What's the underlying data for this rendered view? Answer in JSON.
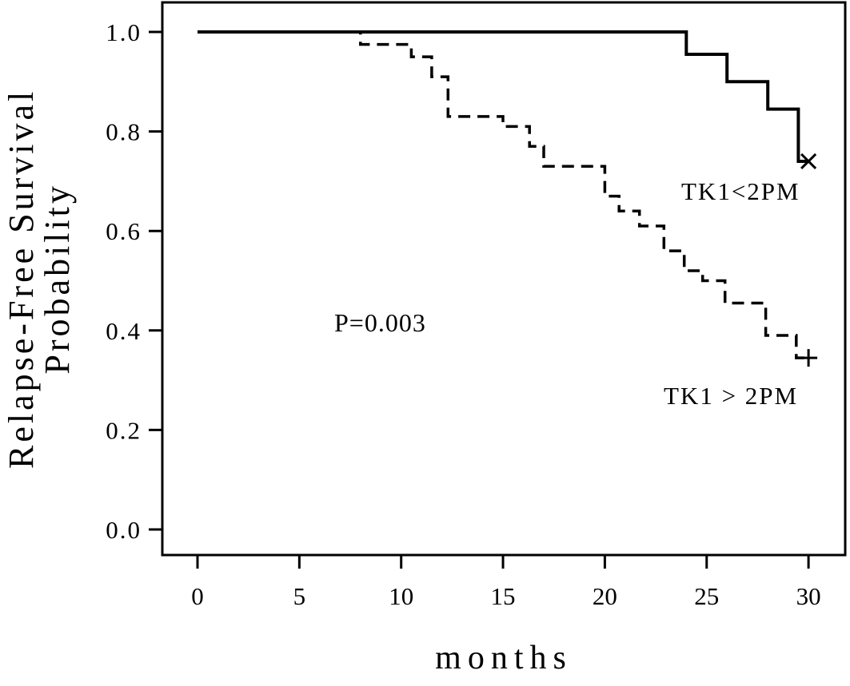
{
  "chart_data": {
    "type": "line",
    "subtype": "kaplan-meier-step-curves",
    "title": "",
    "xlabel": "months",
    "ylabel": "Relapse-Free Survival Probability",
    "ylabel_lines": [
      "Relapse-Free Survival",
      "Probability"
    ],
    "xlim": [
      0,
      30
    ],
    "ylim": [
      0.0,
      1.0
    ],
    "grid": false,
    "legend_position": "in-plot-annotations",
    "x_ticks": {
      "values": [
        0,
        5,
        10,
        15,
        20,
        25,
        30
      ],
      "labels": [
        "0",
        "5",
        "10",
        "15",
        "20",
        "25",
        "30"
      ]
    },
    "y_ticks": {
      "values": [
        1.0,
        0.8,
        0.6,
        0.4,
        0.2,
        0.0
      ],
      "labels": [
        "1.0",
        "0.8",
        "0.6",
        "0.4",
        "0.2",
        "0.0"
      ]
    },
    "annotations": [
      {
        "text": "P=0.003",
        "x": 8.5,
        "y": 0.42
      },
      {
        "text": "TK1<2PM",
        "x": 24.0,
        "y": 0.66
      },
      {
        "text": "TK1 > 2PM",
        "x": 23.0,
        "y": 0.26
      }
    ],
    "series": [
      {
        "name": "TK1<2PM",
        "style": "solid",
        "color": "#000000",
        "step_points": [
          [
            0,
            1.0
          ],
          [
            24,
            1.0
          ],
          [
            24,
            0.955
          ],
          [
            26,
            0.955
          ],
          [
            26,
            0.9
          ],
          [
            28,
            0.9
          ],
          [
            28,
            0.845
          ],
          [
            29.5,
            0.845
          ],
          [
            29.5,
            0.74
          ],
          [
            30,
            0.74
          ]
        ],
        "censor_mark": {
          "symbol": "x",
          "x": 30,
          "y": 0.74
        }
      },
      {
        "name": "TK1 > 2PM",
        "style": "dashed",
        "color": "#000000",
        "step_points": [
          [
            0,
            1.0
          ],
          [
            8,
            1.0
          ],
          [
            8,
            0.975
          ],
          [
            10.5,
            0.975
          ],
          [
            10.5,
            0.95
          ],
          [
            11.5,
            0.95
          ],
          [
            11.5,
            0.91
          ],
          [
            12.3,
            0.91
          ],
          [
            12.3,
            0.83
          ],
          [
            15,
            0.83
          ],
          [
            15,
            0.81
          ],
          [
            16.3,
            0.81
          ],
          [
            16.3,
            0.77
          ],
          [
            17,
            0.77
          ],
          [
            17,
            0.73
          ],
          [
            20,
            0.73
          ],
          [
            20,
            0.67
          ],
          [
            20.7,
            0.67
          ],
          [
            20.7,
            0.64
          ],
          [
            21.7,
            0.64
          ],
          [
            21.7,
            0.61
          ],
          [
            22.9,
            0.61
          ],
          [
            22.9,
            0.56
          ],
          [
            23.9,
            0.56
          ],
          [
            23.9,
            0.52
          ],
          [
            24.8,
            0.52
          ],
          [
            24.8,
            0.5
          ],
          [
            25.9,
            0.5
          ],
          [
            25.9,
            0.455
          ],
          [
            27.9,
            0.455
          ],
          [
            27.9,
            0.39
          ],
          [
            29.4,
            0.39
          ],
          [
            29.4,
            0.345
          ],
          [
            30,
            0.345
          ]
        ],
        "censor_mark": {
          "symbol": "+",
          "x": 30,
          "y": 0.345
        }
      }
    ],
    "colors": {
      "line": "#000000",
      "background": "#ffffff"
    }
  }
}
